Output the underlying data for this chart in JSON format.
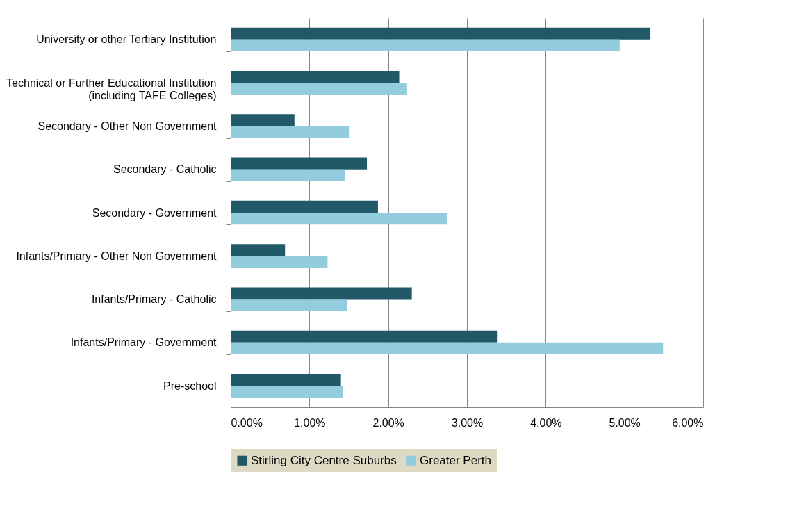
{
  "chart_data": {
    "type": "bar",
    "orientation": "horizontal",
    "categories": [
      "University or other Tertiary Institution",
      "Technical or Further Educational Institution\n(including TAFE Colleges)",
      "Secondary - Other Non Government",
      "Secondary - Catholic",
      "Secondary - Government",
      "Infants/Primary - Other Non Government",
      "Infants/Primary - Catholic",
      "Infants/Primary - Government",
      "Pre-school"
    ],
    "series": [
      {
        "name": "Stirling City Centre Suburbs",
        "color": "#215968",
        "values": [
          5.33,
          2.14,
          0.81,
          1.73,
          1.87,
          0.69,
          2.3,
          3.39,
          1.4
        ]
      },
      {
        "name": "Greater Perth",
        "color": "#93cddd",
        "values": [
          4.94,
          2.24,
          1.51,
          1.45,
          2.75,
          1.23,
          1.48,
          5.49,
          1.42
        ]
      }
    ],
    "xlim": [
      0,
      6
    ],
    "xticks": [
      {
        "value": 0,
        "label": "0.00%"
      },
      {
        "value": 1,
        "label": "1.00%"
      },
      {
        "value": 2,
        "label": "2.00%"
      },
      {
        "value": 3,
        "label": "3.00%"
      },
      {
        "value": 4,
        "label": "4.00%"
      },
      {
        "value": 5,
        "label": "5.00%"
      },
      {
        "value": 6,
        "label": "6.00%"
      }
    ],
    "grid": "x",
    "legend": "bottom"
  }
}
